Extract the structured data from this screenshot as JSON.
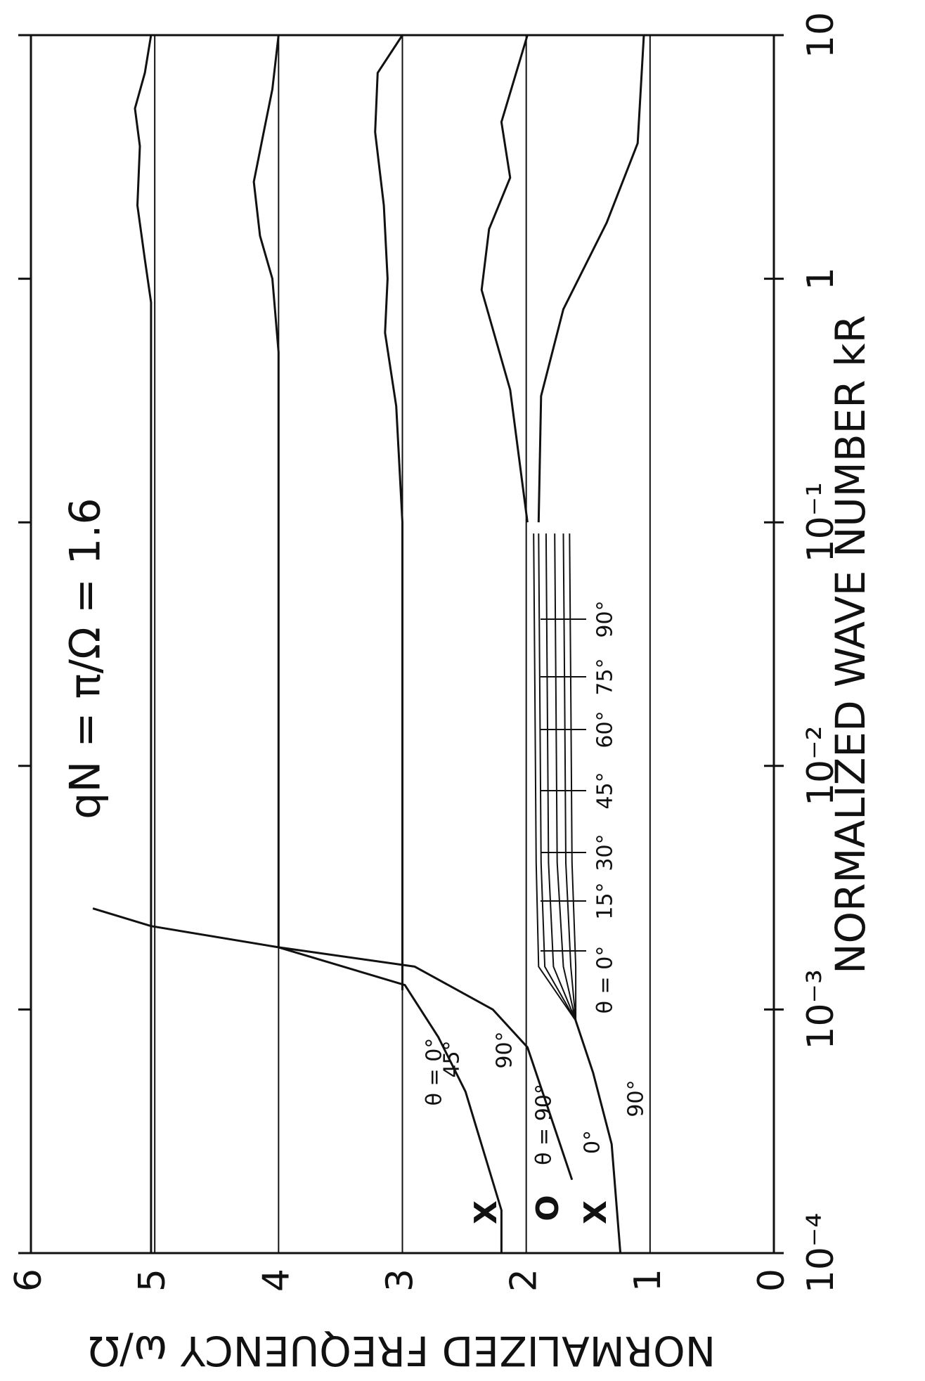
{
  "chart_data": {
    "type": "line",
    "title": "qN = π/Ω = 1.6",
    "xlabel": "NORMALIZED WAVE NUMBER kR",
    "ylabel": "NORMALIZED FREQUENCY ω/Ω",
    "xlog": true,
    "xlim": [
      0.0001,
      10
    ],
    "ylim": [
      0,
      6
    ],
    "xticks": [
      {
        "value": 0.0001,
        "label": "10⁻⁴"
      },
      {
        "value": 0.001,
        "label": "10⁻³"
      },
      {
        "value": 0.01,
        "label": "10⁻²"
      },
      {
        "value": 0.1,
        "label": "10⁻¹"
      },
      1,
      10
    ],
    "yticks": [
      0,
      1,
      2,
      3,
      4,
      5,
      6
    ],
    "grid": true,
    "series": [
      {
        "color": "#111111",
        "x": [
          0.0001,
          0.8,
          1.2,
          2,
          3.5,
          5,
          7,
          10
        ],
        "values": [
          5.03,
          5.03,
          5.08,
          5.14,
          5.12,
          5.16,
          5.08,
          5.03
        ]
      },
      {
        "color": "#111111",
        "x": [
          0.0018,
          0.5,
          1,
          1.5,
          2.5,
          4,
          6,
          10
        ],
        "values": [
          4.0,
          4.0,
          4.05,
          4.15,
          4.2,
          4.12,
          4.05,
          4.0
        ]
      },
      {
        "color": "#111111",
        "x": [
          0.0012,
          0.1,
          0.3,
          0.6,
          1,
          2,
          4,
          7,
          10
        ],
        "values": [
          3.0,
          3.0,
          3.05,
          3.14,
          3.12,
          3.15,
          3.22,
          3.2,
          3.0
        ]
      },
      {
        "color": "#111111",
        "x": [
          0.1,
          0.35,
          0.9,
          1.6,
          2.6,
          4.4,
          10
        ],
        "values": [
          1.99,
          2.13,
          2.36,
          2.3,
          2.13,
          2.2,
          1.99
        ]
      },
      {
        "color": "#111111",
        "x": [
          0.1,
          0.33,
          0.75,
          1.7,
          3.6,
          10
        ],
        "values": [
          1.9,
          1.88,
          1.7,
          1.35,
          1.1,
          1.05
        ]
      },
      {
        "color": "#111111",
        "x": [
          0.0001,
          0.00015,
          0.00046,
          0.00077,
          0.00126,
          0.0018,
          0.0022,
          0.0026
        ],
        "values": [
          2.2,
          2.2,
          2.49,
          2.71,
          2.98,
          4.0,
          5.03,
          5.5
        ]
      },
      {
        "color": "#111111",
        "x": [
          0.0002,
          0.00043,
          0.0007,
          0.001,
          0.0015,
          0.0018
        ],
        "values": [
          1.63,
          1.85,
          1.99,
          2.27,
          2.9,
          4.0
        ]
      },
      {
        "color": "#111111",
        "x": [
          0.0001,
          0.00028,
          0.00055,
          0.0009,
          0.001
        ],
        "values": [
          1.24,
          1.31,
          1.46,
          1.6,
          1.62
        ]
      },
      {
        "color": "#111111",
        "x": [
          0.0009,
          0.0015,
          0.004,
          0.02,
          0.09
        ],
        "values": [
          1.6,
          1.9,
          1.92,
          1.93,
          1.94
        ]
      },
      {
        "color": "#111111",
        "x": [
          0.0009,
          0.0015,
          0.004,
          0.02,
          0.09
        ],
        "values": [
          1.6,
          1.85,
          1.88,
          1.89,
          1.9
        ]
      },
      {
        "color": "#111111",
        "x": [
          0.0009,
          0.0015,
          0.004,
          0.02,
          0.09
        ],
        "values": [
          1.6,
          1.78,
          1.82,
          1.83,
          1.84
        ]
      },
      {
        "color": "#111111",
        "x": [
          0.0009,
          0.0015,
          0.004,
          0.02,
          0.09
        ],
        "values": [
          1.6,
          1.7,
          1.75,
          1.76,
          1.77
        ]
      },
      {
        "color": "#111111",
        "x": [
          0.0009,
          0.0015,
          0.004,
          0.02,
          0.09
        ],
        "values": [
          1.6,
          1.64,
          1.68,
          1.69,
          1.7
        ]
      },
      {
        "color": "#111111",
        "x": [
          0.0009,
          0.0015,
          0.004,
          0.02,
          0.09
        ],
        "values": [
          1.6,
          1.6,
          1.63,
          1.64,
          1.65
        ]
      }
    ],
    "annotations": [
      "θ = 0°",
      "15°",
      "30°",
      "45°",
      "60°",
      "75°",
      "90°",
      "X",
      "O",
      "θ = 90°",
      "X",
      "0°",
      "90°",
      "θ = 0°",
      "45°",
      "90°"
    ]
  }
}
